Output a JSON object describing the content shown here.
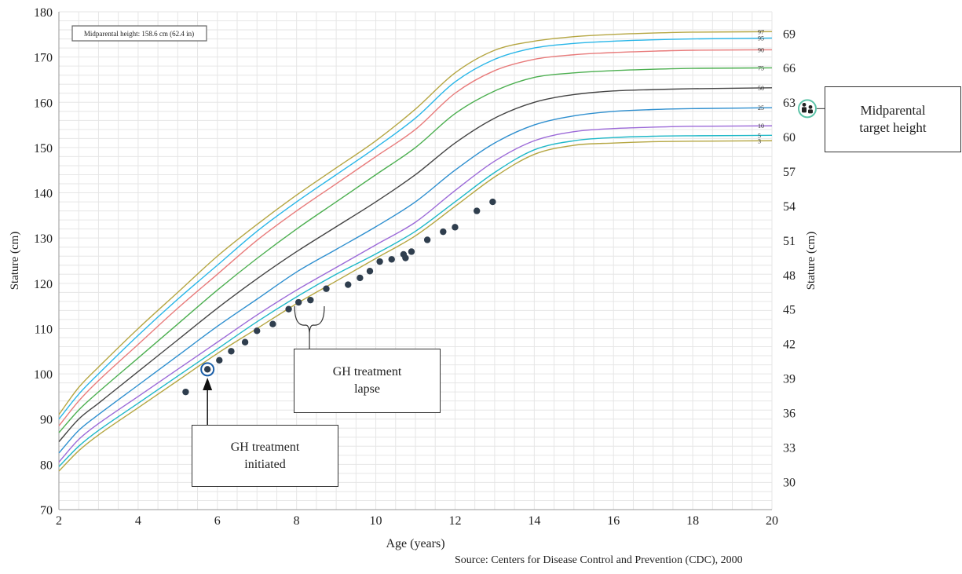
{
  "chart_data": {
    "type": "line",
    "xlabel": "Age (years)",
    "ylabel": "Stature (cm)",
    "ylabel_right": "Stature (cm)",
    "xlim": [
      2,
      20
    ],
    "ylim": [
      70,
      180
    ],
    "x_ticks": [
      2,
      4,
      6,
      8,
      10,
      12,
      14,
      16,
      18,
      20
    ],
    "y_ticks": [
      70,
      80,
      90,
      100,
      110,
      120,
      130,
      140,
      150,
      160,
      170,
      180
    ],
    "right_ticks_in": [
      30,
      33,
      36,
      39,
      42,
      45,
      48,
      51,
      54,
      57,
      60,
      63,
      66,
      69
    ],
    "grid": true,
    "x_grid_step": 0.5,
    "y_grid_step": 2,
    "midparental_label": "Midparental height: 158.6 cm (62.4 in)",
    "source": "Source: Centers for Disease Control and Prevention (CDC), 2000",
    "age_knots": [
      2,
      2.5,
      3,
      4,
      5,
      6,
      7,
      8,
      9,
      10,
      11,
      12,
      13,
      14,
      15,
      16,
      17,
      18,
      20
    ],
    "series": [
      {
        "name": "97",
        "color": "#b5a642",
        "values": [
          91,
          97,
          101.5,
          110,
          118,
          126,
          133,
          139.5,
          145.5,
          151.5,
          158.5,
          166.5,
          171.5,
          173.5,
          174.5,
          175,
          175.3,
          175.5,
          175.6
        ]
      },
      {
        "name": "95",
        "color": "#29b6e8",
        "values": [
          90,
          95.5,
          100,
          108.5,
          116.5,
          124,
          131.5,
          138,
          144,
          150,
          156.5,
          164.5,
          169.5,
          172,
          173,
          173.5,
          173.8,
          174,
          174.2
        ]
      },
      {
        "name": "90",
        "color": "#e87b7b",
        "values": [
          88.5,
          94,
          98.5,
          106.5,
          114.5,
          122,
          129.5,
          136,
          142,
          148,
          154,
          162,
          167,
          169.5,
          170.5,
          171,
          171.3,
          171.5,
          171.6
        ]
      },
      {
        "name": "75",
        "color": "#4caf50",
        "values": [
          87,
          92,
          96,
          103.5,
          111,
          118.5,
          125.5,
          132,
          138,
          144,
          150,
          157.5,
          162.5,
          165.5,
          166.5,
          167,
          167.3,
          167.5,
          167.6
        ]
      },
      {
        "name": "50",
        "color": "#444444",
        "values": [
          85,
          90,
          93.5,
          100.5,
          107.5,
          114.5,
          121,
          127,
          132.5,
          138,
          144,
          151,
          156.5,
          160,
          161.7,
          162.5,
          162.8,
          163,
          163.2
        ]
      },
      {
        "name": "25",
        "color": "#2e8fcf",
        "values": [
          82.5,
          87.5,
          91,
          97.5,
          104,
          110.5,
          116.5,
          122.5,
          127.5,
          132.5,
          138,
          145,
          151,
          155,
          157,
          158,
          158.4,
          158.6,
          158.8
        ]
      },
      {
        "name": "10",
        "color": "#9c6ad8",
        "values": [
          80.5,
          85.5,
          89,
          95,
          101,
          107,
          113,
          118.5,
          123.5,
          128.5,
          133.5,
          140.5,
          147,
          151.5,
          153.5,
          154.2,
          154.5,
          154.7,
          154.8
        ]
      },
      {
        "name": "5",
        "color": "#1fb8c8",
        "values": [
          79.5,
          84,
          87.5,
          93.5,
          99.5,
          105.5,
          111.5,
          117,
          122,
          126.5,
          131.5,
          138,
          144.5,
          149.5,
          151.5,
          152.2,
          152.5,
          152.6,
          152.7
        ]
      },
      {
        "name": "3",
        "color": "#b5a642",
        "values": [
          78.5,
          83,
          86.5,
          92.5,
          98.5,
          104.5,
          110,
          115.5,
          120.5,
          125.5,
          130.5,
          137,
          143.5,
          148.5,
          150.5,
          151,
          151.3,
          151.4,
          151.5
        ]
      }
    ],
    "patient_points": [
      [
        5.2,
        96
      ],
      [
        5.75,
        101
      ],
      [
        6.05,
        103
      ],
      [
        6.35,
        105
      ],
      [
        6.7,
        107
      ],
      [
        7.0,
        109.5
      ],
      [
        7.4,
        111
      ],
      [
        7.8,
        114.3
      ],
      [
        8.05,
        115.8
      ],
      [
        8.35,
        116.3
      ],
      [
        8.75,
        118.8
      ],
      [
        9.3,
        119.7
      ],
      [
        9.6,
        121.2
      ],
      [
        9.85,
        122.7
      ],
      [
        10.1,
        124.8
      ],
      [
        10.4,
        125.3
      ],
      [
        10.7,
        126.4
      ],
      [
        10.75,
        125.6
      ],
      [
        10.9,
        127
      ],
      [
        11.3,
        129.6
      ],
      [
        11.7,
        131.4
      ],
      [
        12.0,
        132.4
      ],
      [
        12.55,
        136
      ],
      [
        12.95,
        138
      ]
    ],
    "highlight_point_index": 1,
    "annotations": {
      "gh_initiated": [
        "GH treatment",
        "initiated"
      ],
      "gh_lapse": [
        "GH treatment",
        "lapse"
      ],
      "midparental_target": [
        "Midparental",
        "target height"
      ]
    },
    "colors": {
      "grid": "#e6e6e6",
      "point": "#2f3e4e",
      "highlight": "#1a5ea8",
      "target_icon": "#5cc3a8"
    }
  }
}
